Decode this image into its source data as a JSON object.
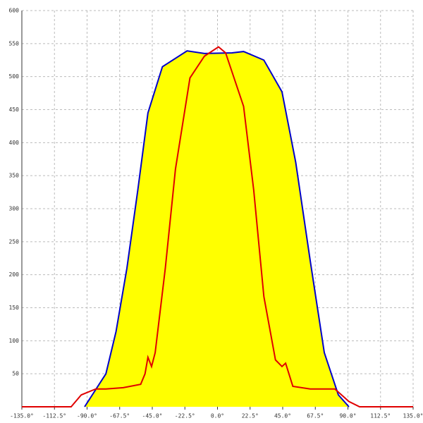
{
  "chart_data": {
    "type": "area_line",
    "xlim": [
      -135,
      135
    ],
    "xticks": [
      {
        "value": -135,
        "label": "-135.0°"
      },
      {
        "value": -112.5,
        "label": "-112.5°"
      },
      {
        "value": -90,
        "label": "-90.0°"
      },
      {
        "value": -67.5,
        "label": "-67.5°"
      },
      {
        "value": -45,
        "label": "-45.0°"
      },
      {
        "value": -22.5,
        "label": "-22.5°"
      },
      {
        "value": 0,
        "label": "0.0°"
      },
      {
        "value": 22.5,
        "label": "22.5°"
      },
      {
        "value": 45,
        "label": "45.0°"
      },
      {
        "value": 67.5,
        "label": "67.5°"
      },
      {
        "value": 90,
        "label": "90.0°"
      },
      {
        "value": 112.5,
        "label": "112.5°"
      },
      {
        "value": 135,
        "label": "135.0°"
      }
    ],
    "ylim": [
      0,
      600
    ],
    "yticks": [
      50,
      100,
      150,
      200,
      250,
      300,
      350,
      400,
      450,
      500,
      550,
      600
    ],
    "grid": true,
    "series": [
      {
        "color": "#0000cc",
        "fill": "#ffff00",
        "x": [
          -91.7,
          -77,
          -70,
          -62.5,
          -55,
          -48,
          -38,
          -21,
          -9,
          10,
          18,
          32,
          44.5,
          54,
          64,
          73.7,
          83.4,
          90.7
        ],
        "values": [
          0,
          50,
          114,
          210,
          328,
          445,
          515,
          539,
          535,
          536,
          538,
          525,
          477,
          370,
          221,
          82,
          18,
          0
        ]
      },
      {
        "color": "#e00000",
        "x": [
          -135,
          -101,
          -94,
          -84,
          -77,
          -65,
          -53,
          -50,
          -48,
          -45.5,
          -43,
          -36,
          -29,
          -19,
          -9,
          0.7,
          5.6,
          18,
          25,
          32,
          40,
          44.5,
          47,
          52,
          64,
          81,
          90.7,
          98,
          135
        ],
        "values": [
          0,
          0,
          18,
          27,
          27,
          29,
          34,
          50,
          75,
          61,
          82,
          210,
          360,
          498,
          531,
          545,
          536,
          455,
          328,
          167,
          71,
          61,
          66,
          31,
          27,
          27,
          8,
          0,
          0
        ]
      }
    ]
  }
}
